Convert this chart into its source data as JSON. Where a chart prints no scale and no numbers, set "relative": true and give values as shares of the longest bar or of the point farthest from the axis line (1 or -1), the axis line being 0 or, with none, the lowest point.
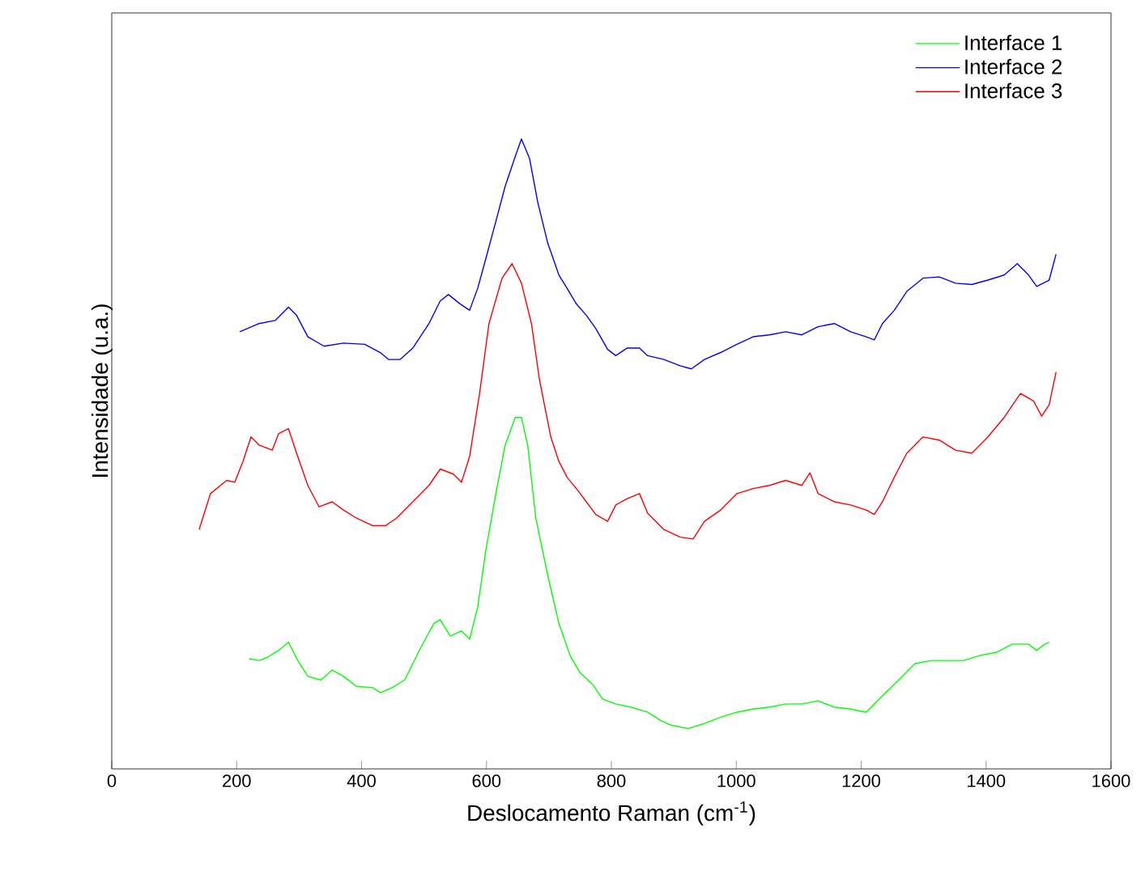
{
  "chart_data": {
    "type": "line",
    "xlabel": "Deslocamento Raman  (cm$^{-1}$)",
    "ylabel": "Intensidade (u.a.)",
    "relative": true,
    "xlim": [
      0,
      1600
    ],
    "xticks": [
      0,
      200,
      400,
      600,
      800,
      1000,
      1200,
      1400,
      1600
    ],
    "legend": "top right",
    "grid": false,
    "marker": "none",
    "line_style": "solid",
    "series": [
      {
        "name": "Interface 1",
        "color": "#00ff00",
        "x": [
          220,
          236,
          249,
          267,
          283,
          298,
          314,
          335,
          353,
          371,
          392,
          418,
          430,
          449,
          469,
          495,
          516,
          526,
          542,
          560,
          573,
          586,
          599,
          615,
          630,
          646,
          656,
          666,
          679,
          698,
          716,
          734,
          749,
          770,
          786,
          807,
          832,
          858,
          879,
          897,
          923,
          949,
          975,
          1001,
          1027,
          1053,
          1079,
          1105,
          1131,
          1157,
          1183,
          1208,
          1234,
          1260,
          1286,
          1312,
          1338,
          1364,
          1390,
          1416,
          1442,
          1468,
          1481,
          1494,
          1501
        ],
        "values": [
          0.175,
          0.172,
          0.177,
          0.188,
          0.201,
          0.172,
          0.147,
          0.141,
          0.157,
          0.147,
          0.131,
          0.129,
          0.121,
          0.129,
          0.141,
          0.193,
          0.231,
          0.237,
          0.211,
          0.219,
          0.206,
          0.257,
          0.347,
          0.437,
          0.514,
          0.558,
          0.558,
          0.514,
          0.398,
          0.308,
          0.231,
          0.18,
          0.154,
          0.134,
          0.111,
          0.103,
          0.098,
          0.09,
          0.077,
          0.069,
          0.064,
          0.072,
          0.082,
          0.09,
          0.095,
          0.098,
          0.103,
          0.103,
          0.108,
          0.098,
          0.095,
          0.09,
          0.116,
          0.141,
          0.167,
          0.172,
          0.172,
          0.172,
          0.18,
          0.185,
          0.198,
          0.198,
          0.188,
          0.198,
          0.201
        ]
      },
      {
        "name": "Interface 2",
        "color": "#0000ff",
        "x": [
          205,
          236,
          262,
          283,
          296,
          314,
          340,
          371,
          405,
          430,
          443,
          462,
          482,
          508,
          526,
          539,
          558,
          573,
          586,
          599,
          615,
          630,
          646,
          656,
          669,
          682,
          698,
          716,
          729,
          744,
          760,
          775,
          794,
          807,
          825,
          845,
          858,
          884,
          910,
          928,
          949,
          975,
          1001,
          1027,
          1053,
          1079,
          1105,
          1131,
          1157,
          1183,
          1208,
          1221,
          1234,
          1253,
          1273,
          1299,
          1325,
          1351,
          1377,
          1403,
          1429,
          1450,
          1468,
          1481,
          1501,
          1512
        ],
        "values": [
          0.694,
          0.707,
          0.712,
          0.733,
          0.72,
          0.686,
          0.671,
          0.676,
          0.674,
          0.661,
          0.65,
          0.65,
          0.668,
          0.707,
          0.743,
          0.753,
          0.738,
          0.728,
          0.763,
          0.81,
          0.869,
          0.925,
          0.972,
          1,
          0.969,
          0.9,
          0.835,
          0.784,
          0.763,
          0.738,
          0.72,
          0.699,
          0.666,
          0.656,
          0.668,
          0.668,
          0.656,
          0.65,
          0.64,
          0.635,
          0.65,
          0.661,
          0.674,
          0.686,
          0.689,
          0.694,
          0.689,
          0.702,
          0.707,
          0.694,
          0.686,
          0.681,
          0.707,
          0.728,
          0.758,
          0.779,
          0.781,
          0.771,
          0.769,
          0.776,
          0.784,
          0.802,
          0.784,
          0.766,
          0.776,
          0.817
        ]
      },
      {
        "name": "Interface 3",
        "color": "#ff0000",
        "x": [
          140,
          158,
          184,
          197,
          210,
          223,
          236,
          257,
          267,
          283,
          296,
          314,
          332,
          353,
          371,
          392,
          418,
          438,
          456,
          482,
          508,
          526,
          547,
          560,
          573,
          589,
          604,
          625,
          641,
          656,
          672,
          685,
          703,
          716,
          729,
          744,
          760,
          775,
          794,
          807,
          825,
          845,
          858,
          884,
          910,
          931,
          949,
          975,
          1001,
          1027,
          1053,
          1079,
          1105,
          1118,
          1131,
          1157,
          1183,
          1208,
          1221,
          1234,
          1253,
          1273,
          1299,
          1325,
          1351,
          1377,
          1403,
          1429,
          1455,
          1476,
          1489,
          1501,
          1512
        ],
        "values": [
          0.38,
          0.437,
          0.458,
          0.455,
          0.488,
          0.527,
          0.514,
          0.506,
          0.532,
          0.54,
          0.501,
          0.45,
          0.416,
          0.424,
          0.411,
          0.398,
          0.386,
          0.386,
          0.398,
          0.424,
          0.45,
          0.476,
          0.468,
          0.455,
          0.496,
          0.596,
          0.707,
          0.779,
          0.802,
          0.771,
          0.707,
          0.617,
          0.527,
          0.488,
          0.463,
          0.445,
          0.424,
          0.404,
          0.393,
          0.419,
          0.429,
          0.437,
          0.406,
          0.38,
          0.368,
          0.365,
          0.393,
          0.411,
          0.437,
          0.445,
          0.45,
          0.458,
          0.45,
          0.47,
          0.437,
          0.424,
          0.419,
          0.411,
          0.404,
          0.424,
          0.463,
          0.501,
          0.527,
          0.522,
          0.506,
          0.501,
          0.527,
          0.558,
          0.596,
          0.584,
          0.56,
          0.578,
          0.63
        ]
      }
    ]
  }
}
